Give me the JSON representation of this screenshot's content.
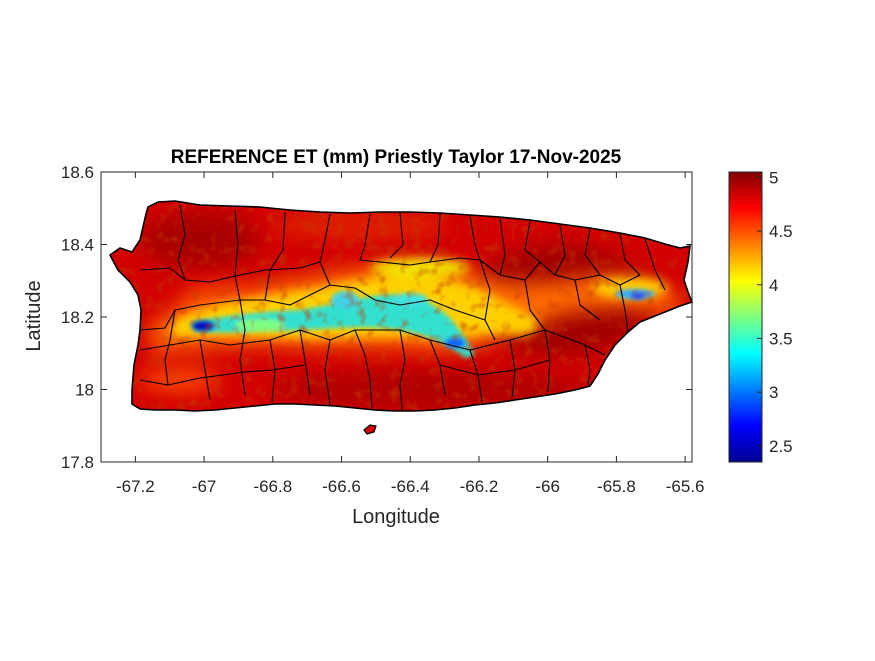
{
  "figure": {
    "title": "REFERENCE ET (mm) Priestly Taylor 17-Nov-2025",
    "xlabel": "Longitude",
    "ylabel": "Latitude"
  },
  "chart_data": {
    "type": "heatmap",
    "title": "REFERENCE ET (mm) Priestly Taylor 17-Nov-2025",
    "xlabel": "Longitude",
    "ylabel": "Latitude",
    "xlim": [
      -67.3,
      -65.58
    ],
    "ylim": [
      17.8,
      18.6
    ],
    "xticks": [
      -67.2,
      -67,
      -66.8,
      -66.6,
      -66.4,
      -66.2,
      -66,
      -65.8,
      -65.6
    ],
    "xtick_labels": [
      "-67.2",
      "-67",
      "-66.8",
      "-66.6",
      "-66.4",
      "-66.2",
      "-66",
      "-65.8",
      "-65.6"
    ],
    "yticks": [
      17.8,
      18,
      18.2,
      18.4,
      18.6
    ],
    "ytick_labels": [
      "17.8",
      "18",
      "18.2",
      "18.4",
      "18.6"
    ],
    "colorbar": {
      "colormap": "jet",
      "range": [
        2.35,
        5.05
      ],
      "ticks": [
        2.5,
        3,
        3.5,
        4,
        4.5,
        5
      ],
      "tick_labels": [
        "2.5",
        "3",
        "3.5",
        "4",
        "4.5",
        "5"
      ]
    },
    "value_regions": [
      {
        "description": "island-wide background",
        "value": 4.8
      },
      {
        "description": "northern coastal band",
        "value": 4.6
      },
      {
        "description": "central Cordillera ridge",
        "value": 3.4
      },
      {
        "description": "western interior minimum near -67.0",
        "value": 2.5
      },
      {
        "description": "central mountains near -66.3, 18.15",
        "value": 3.0
      },
      {
        "description": "eastern Sierra de Luquillo near -65.8, 18.27",
        "value": 3.5
      },
      {
        "description": "southern and eastern lowlands",
        "value": 4.95
      }
    ]
  }
}
